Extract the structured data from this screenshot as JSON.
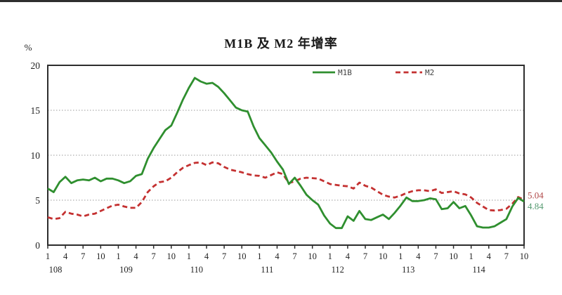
{
  "chart_data": {
    "type": "line",
    "title": "M1B 及 M2 年增率",
    "y_unit_label": "%",
    "ylim": [
      0,
      20
    ],
    "yticks": [
      0,
      5,
      10,
      15,
      20
    ],
    "gridlines": [
      5,
      10,
      15
    ],
    "legend_position": "top-inside",
    "x_axis": {
      "month_tick_labels": [
        "1",
        "4",
        "7",
        "10"
      ],
      "months_per_year": 12,
      "total_points": 82,
      "years": [
        {
          "label": "108",
          "start_index": 0
        },
        {
          "label": "109",
          "start_index": 12
        },
        {
          "label": "110",
          "start_index": 24
        },
        {
          "label": "111",
          "start_index": 36
        },
        {
          "label": "112",
          "start_index": 48
        },
        {
          "label": "113",
          "start_index": 60
        },
        {
          "label": "114",
          "start_index": 72
        }
      ]
    },
    "series": [
      {
        "name": "M2",
        "style": "dashed",
        "color": "#c43131",
        "end_label": "5.04",
        "end_label_color": "#b04848",
        "values": [
          3.1,
          2.9,
          3.0,
          3.7,
          3.5,
          3.4,
          3.2,
          3.4,
          3.5,
          3.8,
          4.1,
          4.4,
          4.5,
          4.3,
          4.15,
          4.15,
          4.8,
          5.9,
          6.55,
          7.0,
          7.1,
          7.5,
          8.1,
          8.6,
          8.9,
          9.15,
          9.2,
          8.9,
          9.2,
          9.1,
          8.7,
          8.4,
          8.25,
          8.1,
          7.9,
          7.75,
          7.7,
          7.5,
          7.8,
          8.1,
          7.9,
          6.9,
          7.1,
          7.4,
          7.5,
          7.45,
          7.4,
          7.1,
          6.8,
          6.7,
          6.6,
          6.55,
          6.3,
          6.95,
          6.6,
          6.4,
          6.0,
          5.6,
          5.4,
          5.3,
          5.5,
          5.8,
          6.0,
          6.1,
          6.1,
          6.0,
          6.2,
          5.8,
          5.9,
          6.0,
          5.75,
          5.65,
          5.3,
          4.7,
          4.3,
          3.9,
          3.85,
          3.9,
          4.05,
          4.6,
          5.35,
          5.04
        ]
      },
      {
        "name": "M1B",
        "style": "solid",
        "color": "#2f8f2f",
        "end_label": "4.84",
        "end_label_color": "#569b72",
        "values": [
          6.3,
          5.9,
          7.0,
          7.6,
          6.9,
          7.2,
          7.3,
          7.2,
          7.5,
          7.1,
          7.4,
          7.4,
          7.2,
          6.9,
          7.1,
          7.7,
          7.9,
          9.6,
          10.8,
          11.8,
          12.8,
          13.3,
          14.7,
          16.2,
          17.5,
          18.6,
          18.2,
          17.95,
          18.05,
          17.6,
          16.9,
          16.1,
          15.3,
          15.0,
          14.85,
          13.2,
          11.9,
          11.1,
          10.3,
          9.3,
          8.4,
          6.8,
          7.5,
          6.6,
          5.6,
          5.0,
          4.5,
          3.3,
          2.4,
          1.9,
          1.9,
          3.2,
          2.7,
          3.8,
          2.9,
          2.8,
          3.1,
          3.4,
          2.9,
          3.6,
          4.4,
          5.3,
          4.9,
          4.9,
          5.0,
          5.2,
          5.1,
          4.0,
          4.1,
          4.8,
          4.1,
          4.35,
          3.3,
          2.1,
          1.95,
          1.95,
          2.1,
          2.5,
          2.9,
          4.3,
          5.25,
          4.84
        ]
      }
    ],
    "colors": {
      "axis": "#2d2d2d",
      "gridline": "#999999",
      "text": "#1f1f1f",
      "legend_text": "#444444"
    }
  }
}
